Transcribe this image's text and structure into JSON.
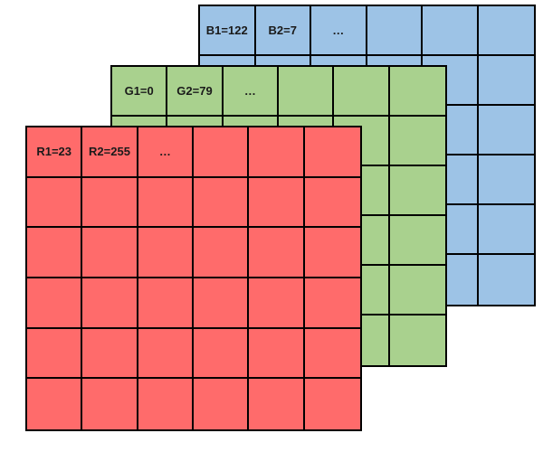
{
  "layers": [
    {
      "id": "blue",
      "color": "#9dc3e6",
      "labels": [
        "B1=122",
        "B2=7",
        "…"
      ]
    },
    {
      "id": "green",
      "color": "#a9d18e",
      "labels": [
        "G1=0",
        "G2=79",
        "…"
      ]
    },
    {
      "id": "red",
      "color": "#ff6b6b",
      "labels": [
        "R1=23",
        "R2=255",
        "…"
      ]
    }
  ],
  "grid": {
    "rows": 6,
    "cols": 6
  }
}
